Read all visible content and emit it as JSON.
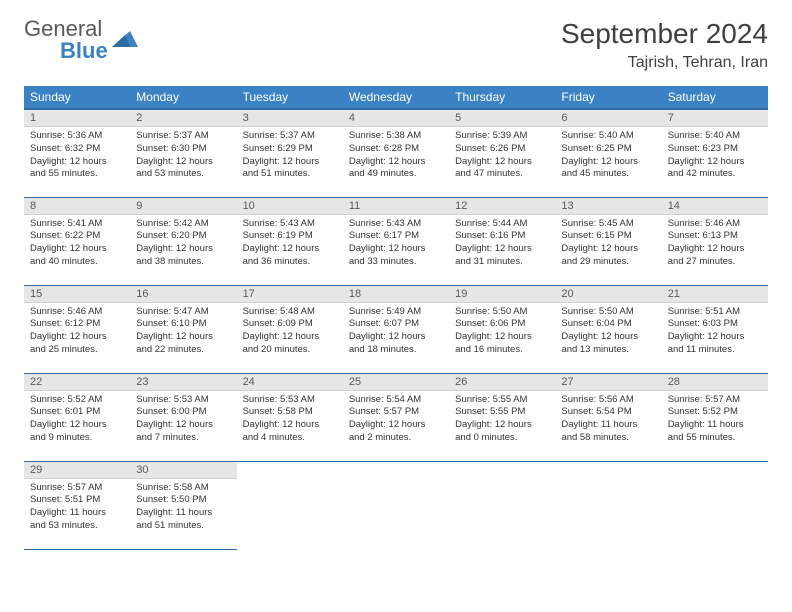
{
  "logo": {
    "word1": "General",
    "word2": "Blue"
  },
  "title": "September 2024",
  "location": "Tajrish, Tehran, Iran",
  "colors": {
    "header_bg": "#3b82c4",
    "header_border": "#2f6aa3",
    "daynum_bg": "#e6e6e6",
    "text": "#333333",
    "logo_gray": "#595959",
    "logo_blue": "#3b82c4",
    "page_bg": "#ffffff"
  },
  "typography": {
    "title_fontsize": 28,
    "location_fontsize": 16,
    "header_fontsize": 12,
    "daynum_fontsize": 11,
    "body_fontsize": 9.5
  },
  "layout": {
    "columns": 7,
    "rows": 5,
    "first_weekday_index": 0,
    "days_in_month": 30
  },
  "weekdays": [
    "Sunday",
    "Monday",
    "Tuesday",
    "Wednesday",
    "Thursday",
    "Friday",
    "Saturday"
  ],
  "days": [
    {
      "n": 1,
      "sunrise": "5:36 AM",
      "sunset": "6:32 PM",
      "dl_h": 12,
      "dl_m": 55
    },
    {
      "n": 2,
      "sunrise": "5:37 AM",
      "sunset": "6:30 PM",
      "dl_h": 12,
      "dl_m": 53
    },
    {
      "n": 3,
      "sunrise": "5:37 AM",
      "sunset": "6:29 PM",
      "dl_h": 12,
      "dl_m": 51
    },
    {
      "n": 4,
      "sunrise": "5:38 AM",
      "sunset": "6:28 PM",
      "dl_h": 12,
      "dl_m": 49
    },
    {
      "n": 5,
      "sunrise": "5:39 AM",
      "sunset": "6:26 PM",
      "dl_h": 12,
      "dl_m": 47
    },
    {
      "n": 6,
      "sunrise": "5:40 AM",
      "sunset": "6:25 PM",
      "dl_h": 12,
      "dl_m": 45
    },
    {
      "n": 7,
      "sunrise": "5:40 AM",
      "sunset": "6:23 PM",
      "dl_h": 12,
      "dl_m": 42
    },
    {
      "n": 8,
      "sunrise": "5:41 AM",
      "sunset": "6:22 PM",
      "dl_h": 12,
      "dl_m": 40
    },
    {
      "n": 9,
      "sunrise": "5:42 AM",
      "sunset": "6:20 PM",
      "dl_h": 12,
      "dl_m": 38
    },
    {
      "n": 10,
      "sunrise": "5:43 AM",
      "sunset": "6:19 PM",
      "dl_h": 12,
      "dl_m": 36
    },
    {
      "n": 11,
      "sunrise": "5:43 AM",
      "sunset": "6:17 PM",
      "dl_h": 12,
      "dl_m": 33
    },
    {
      "n": 12,
      "sunrise": "5:44 AM",
      "sunset": "6:16 PM",
      "dl_h": 12,
      "dl_m": 31
    },
    {
      "n": 13,
      "sunrise": "5:45 AM",
      "sunset": "6:15 PM",
      "dl_h": 12,
      "dl_m": 29
    },
    {
      "n": 14,
      "sunrise": "5:46 AM",
      "sunset": "6:13 PM",
      "dl_h": 12,
      "dl_m": 27
    },
    {
      "n": 15,
      "sunrise": "5:46 AM",
      "sunset": "6:12 PM",
      "dl_h": 12,
      "dl_m": 25
    },
    {
      "n": 16,
      "sunrise": "5:47 AM",
      "sunset": "6:10 PM",
      "dl_h": 12,
      "dl_m": 22
    },
    {
      "n": 17,
      "sunrise": "5:48 AM",
      "sunset": "6:09 PM",
      "dl_h": 12,
      "dl_m": 20
    },
    {
      "n": 18,
      "sunrise": "5:49 AM",
      "sunset": "6:07 PM",
      "dl_h": 12,
      "dl_m": 18
    },
    {
      "n": 19,
      "sunrise": "5:50 AM",
      "sunset": "6:06 PM",
      "dl_h": 12,
      "dl_m": 16
    },
    {
      "n": 20,
      "sunrise": "5:50 AM",
      "sunset": "6:04 PM",
      "dl_h": 12,
      "dl_m": 13
    },
    {
      "n": 21,
      "sunrise": "5:51 AM",
      "sunset": "6:03 PM",
      "dl_h": 12,
      "dl_m": 11
    },
    {
      "n": 22,
      "sunrise": "5:52 AM",
      "sunset": "6:01 PM",
      "dl_h": 12,
      "dl_m": 9
    },
    {
      "n": 23,
      "sunrise": "5:53 AM",
      "sunset": "6:00 PM",
      "dl_h": 12,
      "dl_m": 7
    },
    {
      "n": 24,
      "sunrise": "5:53 AM",
      "sunset": "5:58 PM",
      "dl_h": 12,
      "dl_m": 4
    },
    {
      "n": 25,
      "sunrise": "5:54 AM",
      "sunset": "5:57 PM",
      "dl_h": 12,
      "dl_m": 2
    },
    {
      "n": 26,
      "sunrise": "5:55 AM",
      "sunset": "5:55 PM",
      "dl_h": 12,
      "dl_m": 0
    },
    {
      "n": 27,
      "sunrise": "5:56 AM",
      "sunset": "5:54 PM",
      "dl_h": 11,
      "dl_m": 58
    },
    {
      "n": 28,
      "sunrise": "5:57 AM",
      "sunset": "5:52 PM",
      "dl_h": 11,
      "dl_m": 55
    },
    {
      "n": 29,
      "sunrise": "5:57 AM",
      "sunset": "5:51 PM",
      "dl_h": 11,
      "dl_m": 53
    },
    {
      "n": 30,
      "sunrise": "5:58 AM",
      "sunset": "5:50 PM",
      "dl_h": 11,
      "dl_m": 51
    }
  ],
  "labels": {
    "sunrise": "Sunrise:",
    "sunset": "Sunset:",
    "daylight": "Daylight:",
    "hours": "hours",
    "and": "and",
    "minutes": "minutes."
  }
}
